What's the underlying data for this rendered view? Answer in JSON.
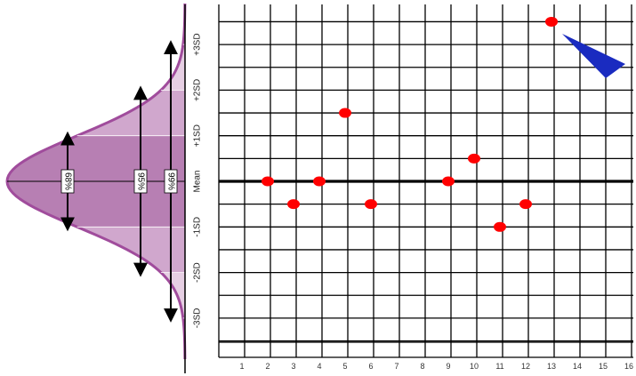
{
  "chart_data": {
    "type": "scatter",
    "title": "",
    "xlabel": "",
    "ylabel": "",
    "x_ticks": [
      "1",
      "2",
      "3",
      "4",
      "5",
      "6",
      "7",
      "8",
      "9",
      "10",
      "11",
      "12",
      "13",
      "14",
      "15",
      "16"
    ],
    "xlim": [
      0,
      16
    ],
    "y_ticks": [
      {
        "value": 3,
        "label": "+3SD"
      },
      {
        "value": 2,
        "label": "+2SD"
      },
      {
        "value": 1,
        "label": "+1SD"
      },
      {
        "value": 0,
        "label": "Mean"
      },
      {
        "value": -1,
        "label": "-1SD"
      },
      {
        "value": -2,
        "label": "-2SD"
      },
      {
        "value": -3,
        "label": "-3SD"
      }
    ],
    "ylim": [
      -3.95,
      3.95
    ],
    "grid": true,
    "series": [
      {
        "color": "#ff0000",
        "points": [
          {
            "x": 2,
            "y": 0
          },
          {
            "x": 3,
            "y": -0.5
          },
          {
            "x": 4,
            "y": 0
          },
          {
            "x": 5,
            "y": 1.5
          },
          {
            "x": 6,
            "y": -0.5
          },
          {
            "x": 9,
            "y": 0
          },
          {
            "x": 10,
            "y": 0.5
          },
          {
            "x": 11,
            "y": -1
          },
          {
            "x": 12,
            "y": -0.5
          },
          {
            "x": 13,
            "y": 3.5
          }
        ]
      }
    ],
    "distribution": {
      "bands": [
        {
          "label": "68%",
          "sd": 1
        },
        {
          "label": "95%",
          "sd": 2
        },
        {
          "label": "99%",
          "sd": 3
        }
      ],
      "colors": {
        "outline": "#a04c9c",
        "band1": "#b77fb3",
        "band2": "#d0a7cd",
        "band3": "#e6cfe3"
      }
    },
    "colors": {
      "point": "#ff0000",
      "annotation_arrow": "#1a2bc0",
      "grid": "#000000"
    }
  }
}
